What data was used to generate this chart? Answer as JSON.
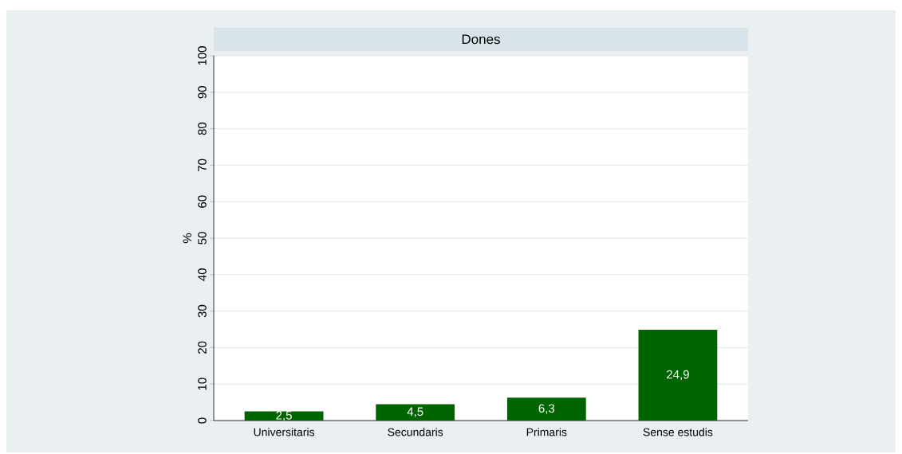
{
  "chart_data": {
    "type": "bar",
    "title": "Dones",
    "ylabel": "%",
    "categories": [
      "Universitaris",
      "Secundaris",
      "Primaris",
      "Sense estudis"
    ],
    "values": [
      2.5,
      4.5,
      6.3,
      24.9
    ],
    "value_labels": [
      "2,5",
      "4,5",
      "6,3",
      "24,9"
    ],
    "color": "#006400",
    "ylim": [
      0,
      100
    ],
    "yticks": [
      0,
      10,
      20,
      30,
      40,
      50,
      60,
      70,
      80,
      90,
      100
    ],
    "grid": "y"
  }
}
